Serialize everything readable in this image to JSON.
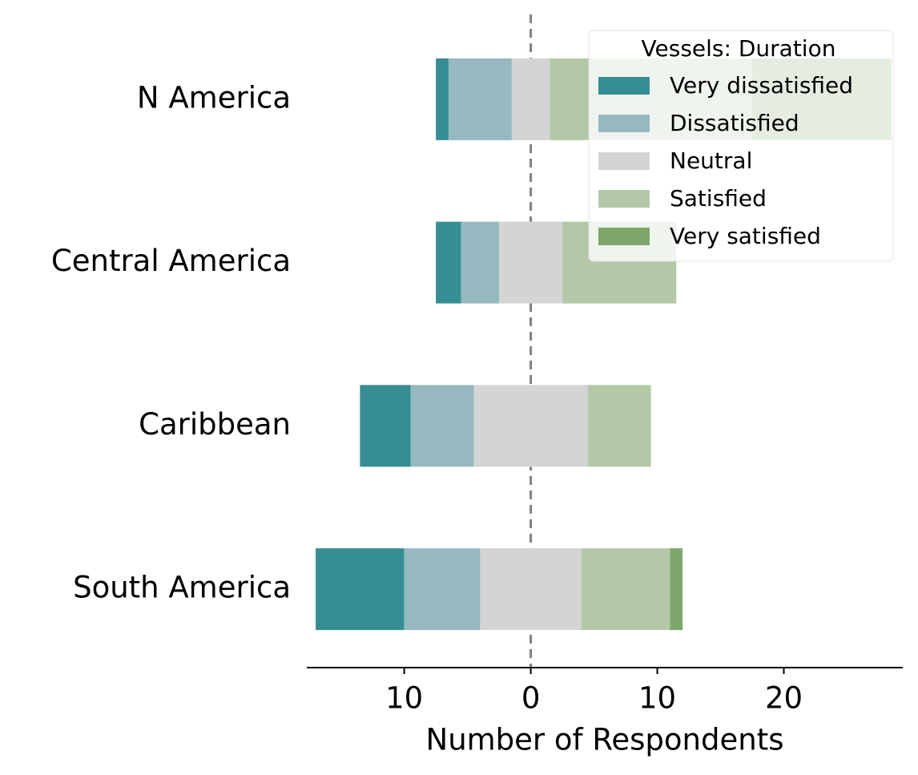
{
  "chart_data": {
    "type": "diverging-bar",
    "legend_title": "Vessels: Duration",
    "xlabel": "Number of Respondents",
    "categories": [
      "N America",
      "Central America",
      "Caribbean",
      "South America"
    ],
    "series": [
      {
        "name": "Very dissatisfied",
        "color": "#368e94",
        "values": [
          1,
          2,
          4,
          7
        ]
      },
      {
        "name": "Dissatisfied",
        "color": "#96b9c0",
        "values": [
          5,
          3,
          5,
          6
        ]
      },
      {
        "name": "Neutral",
        "color": "#d4d4d4",
        "values": [
          3,
          5,
          9,
          8
        ]
      },
      {
        "name": "Satisfied",
        "color": "#b4c8a8",
        "values": [
          16,
          9,
          5,
          7
        ]
      },
      {
        "name": "Very satisfied",
        "color": "#7ea76b",
        "values": [
          11,
          0,
          0,
          1
        ]
      }
    ],
    "xlim": [
      -17.7,
      29.4
    ],
    "xticks": [
      {
        "value": -10,
        "label": "10"
      },
      0,
      10,
      20
    ],
    "legend": "upper right"
  }
}
